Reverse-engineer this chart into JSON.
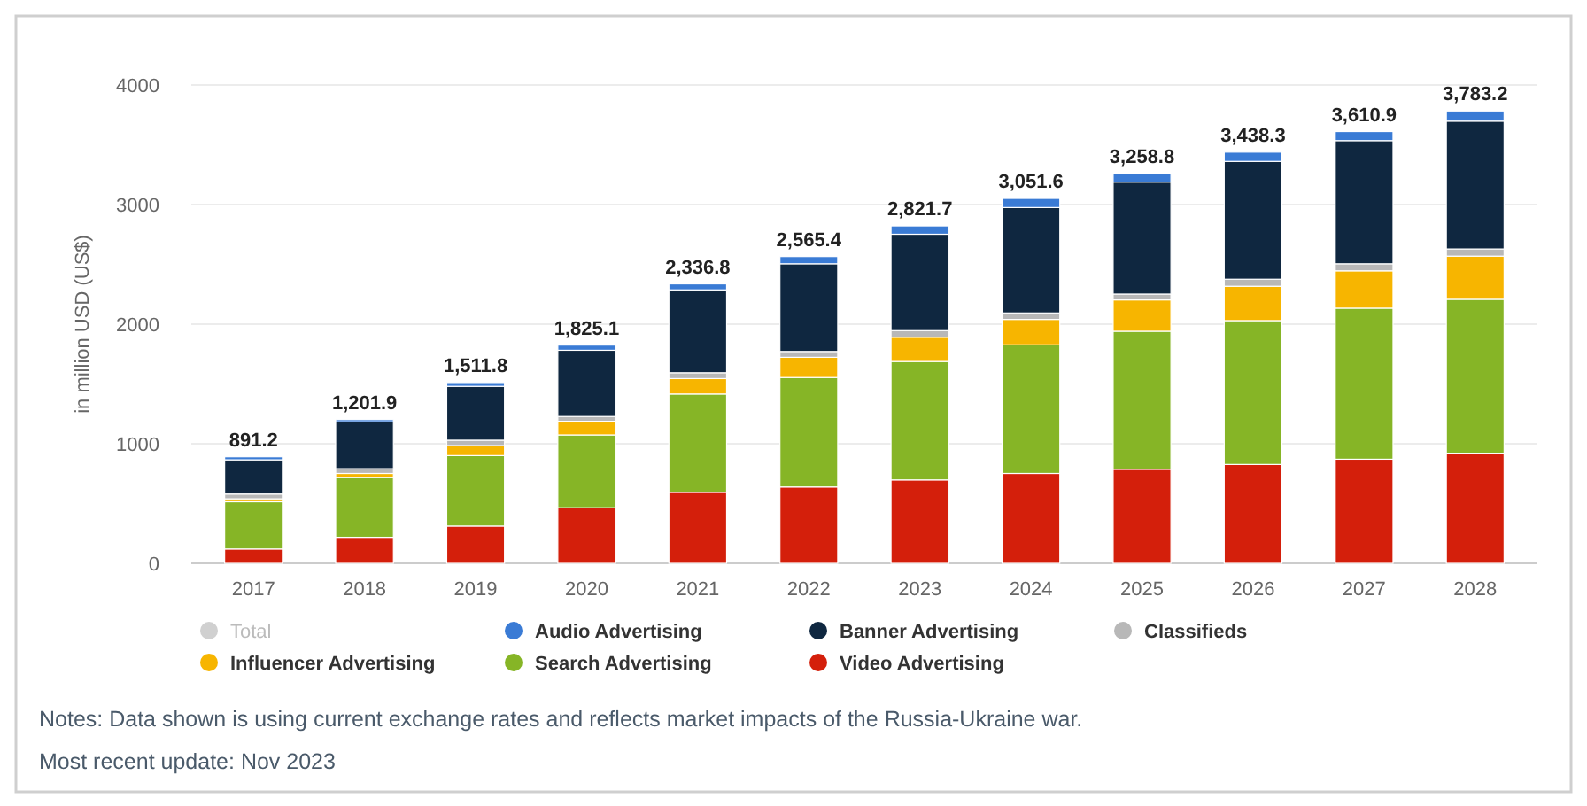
{
  "chart_data": {
    "type": "bar",
    "stacked": true,
    "ylabel": "in million USD (US$)",
    "categories": [
      "2017",
      "2018",
      "2019",
      "2020",
      "2021",
      "2022",
      "2023",
      "2024",
      "2025",
      "2026",
      "2027",
      "2028"
    ],
    "series": [
      {
        "name": "Video Advertising",
        "color": "#d41f0b",
        "values": [
          120,
          218,
          312,
          465,
          594,
          639,
          698,
          752,
          787,
          827,
          871,
          916
        ]
      },
      {
        "name": "Search Advertising",
        "color": "#86b526",
        "values": [
          395,
          500,
          589,
          609,
          822,
          915,
          990,
          1075,
          1154,
          1203,
          1263,
          1292
        ]
      },
      {
        "name": "Influencer Advertising",
        "color": "#f7b500",
        "values": [
          25,
          34,
          84,
          114,
          129,
          169,
          203,
          213,
          262,
          287,
          312,
          361
        ]
      },
      {
        "name": "Classifieds",
        "color": "#b8b8b8",
        "values": [
          40,
          40,
          45,
          40,
          49,
          49,
          55,
          54,
          49,
          59,
          59,
          60
        ]
      },
      {
        "name": "Banner Advertising",
        "color": "#0f2740",
        "values": [
          286,
          391,
          450,
          554,
          693,
          733,
          806,
          881,
          936,
          985,
          1030,
          1069
        ]
      },
      {
        "name": "Audio Advertising",
        "color": "#3a7bd5",
        "values": [
          25.2,
          18.9,
          31.8,
          43.1,
          49.8,
          60.4,
          69.7,
          76.6,
          70.8,
          77.3,
          75.9,
          85.2
        ]
      },
      {
        "name": "Total",
        "color": "#d0d0d0",
        "values": [
          null,
          null,
          null,
          null,
          null,
          null,
          null,
          null,
          null,
          null,
          null,
          null
        ]
      }
    ],
    "totals": [
      "891.2",
      "1,201.9",
      "1,511.8",
      "1,825.1",
      "2,336.8",
      "2,565.4",
      "2,821.7",
      "3,051.6",
      "3,258.8",
      "3,438.3",
      "3,610.9",
      "3,783.2"
    ],
    "ylim": [
      0,
      4000
    ],
    "yticks": [
      0,
      1000,
      2000,
      3000,
      4000
    ],
    "grid": "y",
    "legend": "bottom",
    "annotations": [
      "Notes: Data shown is using current exchange rates and reflects market impacts of the Russia-Ukraine war.",
      "Most recent update: Nov 2023"
    ]
  }
}
